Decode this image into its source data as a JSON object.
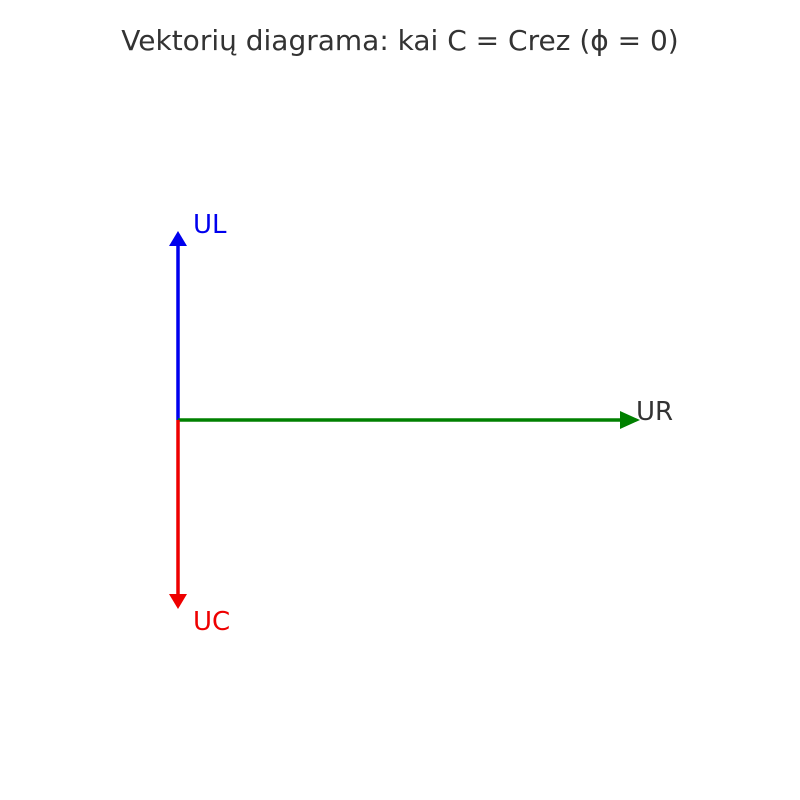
{
  "diagram": {
    "title": "Vektorių diagrama: kai C = Crez (ϕ = 0)",
    "vectors": [
      {
        "id": "ul",
        "label": "UL",
        "direction": "up",
        "color": "#0000ee",
        "label_color": "#0000ee"
      },
      {
        "id": "ur",
        "label": "UR",
        "direction": "right",
        "color": "#008000",
        "label_color": "#333333"
      },
      {
        "id": "uc",
        "label": "UC",
        "direction": "down",
        "color": "#ee0000",
        "label_color": "#ee0000"
      }
    ]
  }
}
